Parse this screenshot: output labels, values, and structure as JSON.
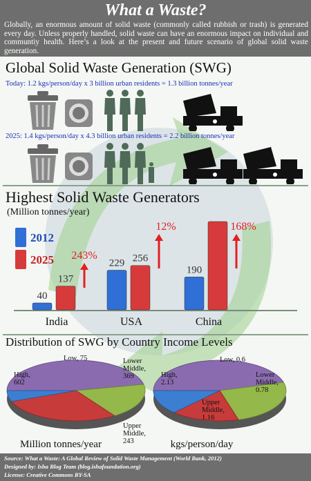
{
  "header": {
    "title": "What a Waste?",
    "intro": "Globally, an enormous amount of solid waste (commonly called rubbish or trash) is generated every day. Unless properly handled, solid waste can have an enormous impact on individual and communtiy health. Here’s a look at the present and future scenario of global solid waste generation."
  },
  "swg": {
    "title": "Global Solid Waste Generation (SWG)",
    "today": "Today: 1.2 kgs/person/day x 3 billion urban residents = 1.3 billion tonnes/year",
    "future": "2025: 1.4 kgs/person/day x 4.3 billion urban residents = 2.2 billion tonnes/year",
    "icons": [
      "trash-can-icon",
      "overturned-trash-can-icon",
      "person-icon",
      "dump-truck-icon"
    ]
  },
  "colors": {
    "y2012": "#2f6fd6",
    "y2025": "#d63a3a",
    "high": "#8b6bb0",
    "upper_middle": "#94b84a",
    "lower_middle": "#c83b3b",
    "low": "#3c7fd2",
    "header_bg": "#6e6e6e",
    "swg_text": "#1a2db5"
  },
  "chart_data": [
    {
      "type": "bar",
      "title": "Highest Solid Waste Generators",
      "subtitle": "(Million tonnes/year)",
      "categories": [
        "India",
        "USA",
        "China"
      ],
      "series": [
        {
          "name": "2012",
          "values": [
            40,
            229,
            190
          ]
        },
        {
          "name": "2025",
          "values": [
            137,
            256,
            510
          ]
        }
      ],
      "growth": [
        "243%",
        "12%",
        "168%"
      ],
      "ylim": [
        0,
        510
      ],
      "legend": "top-left"
    },
    {
      "type": "pie",
      "title": "Distribution of SWG by Country Income Levels",
      "caption": "Million tonnes/year",
      "slices": [
        {
          "label": "High,",
          "value": 602
        },
        {
          "label": "Upper Middle,",
          "value": 243
        },
        {
          "label": "Lower Middle,",
          "value": 369
        },
        {
          "label": "Low,",
          "value": 75
        }
      ]
    },
    {
      "type": "pie",
      "caption": "kgs/person/day",
      "slices": [
        {
          "label": "High,",
          "value": 2.13
        },
        {
          "label": "Upper Middle,",
          "value": 1.16
        },
        {
          "label": "Lower Middle,",
          "value": 0.78
        },
        {
          "label": "Low,",
          "value": 0.6
        }
      ]
    }
  ],
  "footer": {
    "source": "Source: What a Waste: A Global Review of Solid Waste Management (World Bank, 2012)",
    "designed": "Designed by: Isha Blog Team (blog.ishafoundation.org)",
    "license": "License: Creative Commons BY-SA"
  }
}
